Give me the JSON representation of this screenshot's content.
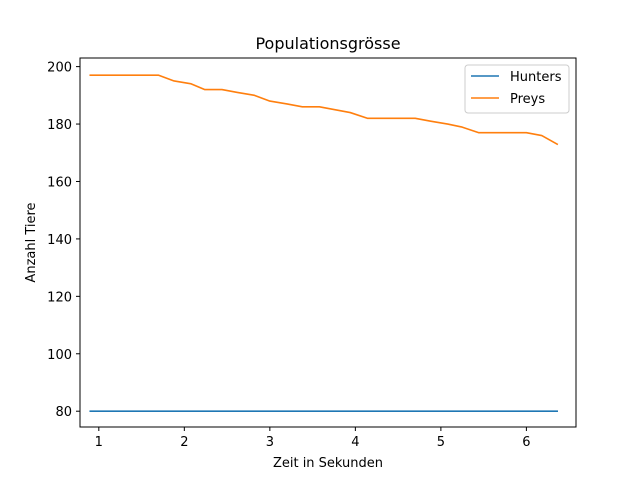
{
  "chart_data": {
    "type": "line",
    "title": "Populationsgrösse",
    "xlabel": "Zeit in Sekunden",
    "ylabel": "Anzahl Tiere",
    "xlim": [
      0.78,
      6.58
    ],
    "ylim": [
      74.5,
      203
    ],
    "xticks": [
      1,
      2,
      3,
      4,
      5,
      6
    ],
    "yticks": [
      80,
      100,
      120,
      140,
      160,
      180,
      200
    ],
    "grid": false,
    "legend_position": "top-right",
    "series": [
      {
        "name": "Hunters",
        "color": "#1f77b4",
        "x": [
          0.9,
          6.36
        ],
        "y": [
          80,
          80
        ]
      },
      {
        "name": "Preys",
        "color": "#ff7f0e",
        "x": [
          0.9,
          1.1,
          1.3,
          1.5,
          1.7,
          1.88,
          2.08,
          2.24,
          2.44,
          2.62,
          2.82,
          3.0,
          3.2,
          3.38,
          3.58,
          3.76,
          3.94,
          4.14,
          4.32,
          4.5,
          4.7,
          4.88,
          5.08,
          5.24,
          5.44,
          5.62,
          5.82,
          6.0,
          6.18,
          6.36
        ],
        "y": [
          197,
          197,
          197,
          197,
          197,
          195,
          194,
          192,
          192,
          191,
          190,
          188,
          187,
          186,
          186,
          185,
          184,
          182,
          182,
          182,
          182,
          181,
          180,
          179,
          177,
          177,
          177,
          177,
          176,
          173
        ]
      }
    ]
  }
}
